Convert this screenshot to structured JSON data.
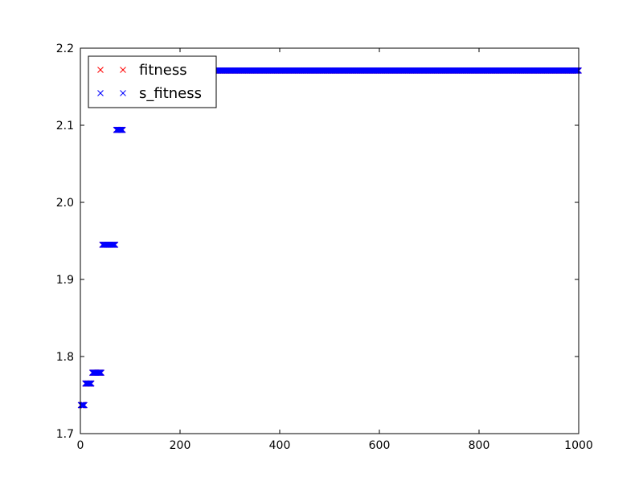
{
  "colors": {
    "fitness": "#ff0000",
    "s_fitness": "#0000ff",
    "axes": "#000000",
    "background": "#ffffff"
  },
  "chart_data": {
    "type": "scatter",
    "marker": "x",
    "xlim": [
      0,
      1000
    ],
    "ylim": [
      1.7,
      2.2
    ],
    "xticks": [
      0,
      200,
      400,
      600,
      800,
      1000
    ],
    "yticks": [
      1.7,
      1.8,
      1.9,
      2.0,
      2.1,
      2.2
    ],
    "xtick_labels": [
      "0",
      "200",
      "400",
      "600",
      "800",
      "1000"
    ],
    "ytick_labels": [
      "1.7",
      "1.8",
      "1.9",
      "2.0",
      "2.1",
      "2.2"
    ],
    "legend_position": "top-left",
    "grid": false,
    "legend": [
      {
        "name": "fitness",
        "color": "#ff0000"
      },
      {
        "name": "s_fitness",
        "color": "#0000ff"
      }
    ],
    "series": [
      {
        "name": "fitness",
        "color": "#ff0000",
        "segments": [
          {
            "x_start": 1,
            "x_end": 8,
            "y": 1.737
          },
          {
            "x_start": 10,
            "x_end": 22,
            "y": 1.765
          },
          {
            "x_start": 24,
            "x_end": 42,
            "y": 1.779
          },
          {
            "x_start": 44,
            "x_end": 70,
            "y": 1.945
          },
          {
            "x_start": 72,
            "x_end": 85,
            "y": 2.094
          },
          {
            "x_start": 87,
            "x_end": 1000,
            "y": 2.171
          }
        ]
      },
      {
        "name": "s_fitness",
        "color": "#0000ff",
        "segments": [
          {
            "x_start": 1,
            "x_end": 8,
            "y": 1.737
          },
          {
            "x_start": 10,
            "x_end": 22,
            "y": 1.765
          },
          {
            "x_start": 24,
            "x_end": 42,
            "y": 1.779
          },
          {
            "x_start": 44,
            "x_end": 70,
            "y": 1.945
          },
          {
            "x_start": 72,
            "x_end": 85,
            "y": 2.094
          },
          {
            "x_start": 87,
            "x_end": 1000,
            "y": 2.171
          }
        ]
      }
    ]
  }
}
